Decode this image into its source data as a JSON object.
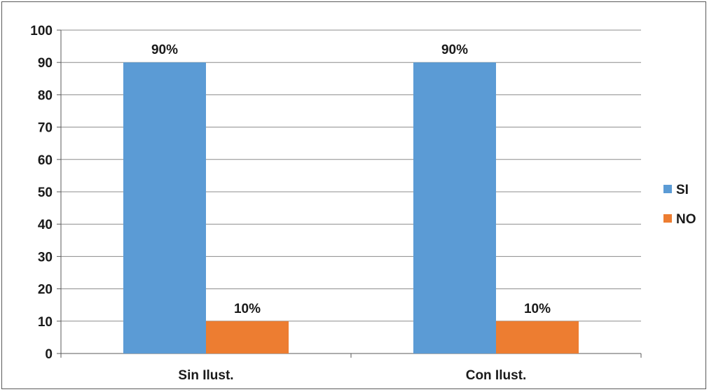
{
  "chart_data": {
    "type": "bar",
    "categories": [
      "Sin Ilust.",
      "Con Ilust."
    ],
    "series": [
      {
        "name": "SI",
        "values": [
          90,
          90
        ],
        "labels": [
          "90%",
          "90%"
        ],
        "color": "#5b9bd5"
      },
      {
        "name": "NO",
        "values": [
          10,
          10
        ],
        "labels": [
          "10%",
          "10%"
        ],
        "color": "#ed7d31"
      }
    ],
    "y_ticks": [
      "0",
      "10",
      "20",
      "30",
      "40",
      "50",
      "60",
      "70",
      "80",
      "90",
      "100"
    ],
    "ylim": [
      0,
      100
    ],
    "grid": true,
    "legend_position": "right"
  }
}
